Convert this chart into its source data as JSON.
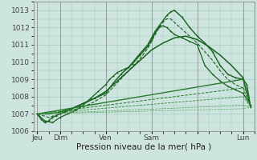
{
  "background_color": "#cde5de",
  "plot_bg_color": "#cde5de",
  "grid_color": "#9ec8b8",
  "ylim": [
    1006,
    1013.5
  ],
  "yticks": [
    1006,
    1007,
    1008,
    1009,
    1010,
    1011,
    1012,
    1013
  ],
  "xlabel": "Pression niveau de la mer( hPa )",
  "xlabel_fontsize": 7.5,
  "tick_fontsize": 6.5,
  "day_labels": [
    "Jeu",
    "Dim",
    "Ven",
    "Sam",
    "",
    "Lun"
  ],
  "day_positions": [
    0,
    12,
    36,
    60,
    84,
    108
  ],
  "xlim": [
    -2,
    114
  ],
  "lines": [
    {
      "x": [
        0,
        2,
        4,
        6,
        8,
        10,
        12,
        14,
        18,
        22,
        26,
        30,
        36,
        40,
        44,
        48,
        54,
        58,
        60,
        62,
        64,
        66,
        68,
        70,
        72,
        76,
        80,
        84,
        88,
        92,
        96,
        100,
        104,
        108,
        110,
        112
      ],
      "y": [
        1007.0,
        1006.7,
        1006.5,
        1006.6,
        1006.8,
        1006.9,
        1007.0,
        1007.1,
        1007.3,
        1007.5,
        1007.7,
        1007.9,
        1008.2,
        1008.8,
        1009.3,
        1009.7,
        1010.5,
        1011.0,
        1011.4,
        1011.8,
        1012.1,
        1012.4,
        1012.7,
        1012.9,
        1013.0,
        1012.6,
        1012.0,
        1011.5,
        1011.1,
        1010.6,
        1009.8,
        1009.3,
        1009.1,
        1009.0,
        1008.7,
        1007.4
      ],
      "style": "-",
      "color": "#1a6020",
      "lw": 1.0,
      "marker": "+"
    },
    {
      "x": [
        0,
        6,
        12,
        18,
        24,
        30,
        36,
        42,
        48,
        54,
        58,
        60,
        62,
        64,
        66,
        68,
        70,
        72,
        76,
        80,
        84,
        88,
        92,
        96,
        100,
        104,
        108,
        110,
        112
      ],
      "y": [
        1007.0,
        1006.8,
        1007.0,
        1007.2,
        1007.4,
        1007.7,
        1008.1,
        1008.8,
        1009.5,
        1010.2,
        1010.8,
        1011.2,
        1011.6,
        1012.0,
        1012.3,
        1012.5,
        1012.5,
        1012.3,
        1011.9,
        1011.5,
        1011.1,
        1010.6,
        1010.1,
        1009.5,
        1009.0,
        1008.7,
        1008.5,
        1008.3,
        1007.5
      ],
      "style": "--",
      "color": "#1a6020",
      "lw": 0.8,
      "marker": null
    },
    {
      "x": [
        0,
        6,
        12,
        18,
        24,
        30,
        36,
        42,
        48,
        54,
        60,
        66,
        72,
        78,
        84,
        90,
        96,
        102,
        108,
        112
      ],
      "y": [
        1007.0,
        1007.0,
        1007.1,
        1007.3,
        1007.6,
        1007.9,
        1008.3,
        1008.9,
        1009.5,
        1010.1,
        1010.7,
        1011.1,
        1011.4,
        1011.5,
        1011.3,
        1010.9,
        1010.4,
        1009.8,
        1009.1,
        1007.4
      ],
      "style": "-",
      "color": "#1a6020",
      "lw": 1.1,
      "marker": null
    },
    {
      "x": [
        0,
        4,
        8,
        12,
        16,
        20,
        24,
        28,
        32,
        36,
        38,
        40,
        42,
        44,
        46,
        48,
        50,
        54,
        58,
        60,
        62,
        64,
        66,
        68,
        70,
        72,
        76,
        80,
        84,
        88,
        92,
        96,
        100,
        104,
        108,
        112
      ],
      "y": [
        1007.0,
        1006.6,
        1006.5,
        1006.8,
        1007.0,
        1007.2,
        1007.5,
        1007.9,
        1008.3,
        1008.7,
        1009.0,
        1009.2,
        1009.4,
        1009.5,
        1009.6,
        1009.7,
        1009.9,
        1010.4,
        1010.9,
        1011.3,
        1011.7,
        1012.0,
        1012.1,
        1012.0,
        1011.8,
        1011.6,
        1011.4,
        1011.2,
        1011.0,
        1009.8,
        1009.3,
        1008.9,
        1008.6,
        1008.4,
        1008.2,
        1007.5
      ],
      "style": "-",
      "color": "#1a6020",
      "lw": 0.9,
      "marker": "+"
    },
    {
      "x": [
        0,
        108,
        112
      ],
      "y": [
        1007.0,
        1009.0,
        1007.4
      ],
      "style": "-",
      "color": "#2a7a30",
      "lw": 1.0,
      "marker": null
    },
    {
      "x": [
        0,
        108,
        112
      ],
      "y": [
        1007.0,
        1008.5,
        1007.4
      ],
      "style": "--",
      "color": "#2a7a30",
      "lw": 0.7,
      "marker": null
    },
    {
      "x": [
        0,
        108,
        112
      ],
      "y": [
        1007.0,
        1008.0,
        1007.4
      ],
      "style": "--",
      "color": "#3a8a40",
      "lw": 0.6,
      "marker": null
    },
    {
      "x": [
        0,
        108,
        112
      ],
      "y": [
        1007.0,
        1007.5,
        1007.4
      ],
      "style": "--",
      "color": "#4a9a50",
      "lw": 0.5,
      "marker": null
    },
    {
      "x": [
        0,
        108,
        112
      ],
      "y": [
        1007.0,
        1007.3,
        1007.4
      ],
      "style": "--",
      "color": "#5aaa60",
      "lw": 0.5,
      "marker": null
    }
  ]
}
